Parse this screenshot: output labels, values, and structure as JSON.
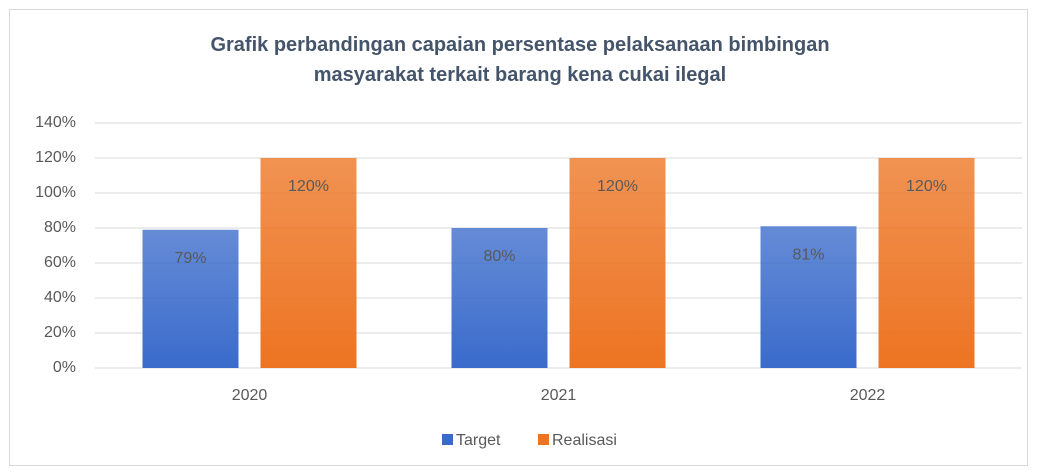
{
  "chart_data": {
    "type": "bar",
    "title": "Grafik perbandingan capaian persentase pelaksanaan bimbingan masyarakat terkait barang kena cukai ilegal",
    "categories": [
      "2020",
      "2021",
      "2022"
    ],
    "series": [
      {
        "name": "Target",
        "color": "#3a6bcb",
        "values": [
          79,
          80,
          81
        ],
        "value_labels": [
          "79%",
          "80%",
          "81%"
        ]
      },
      {
        "name": "Realisasi",
        "color": "#ed7422",
        "values": [
          120,
          120,
          120
        ],
        "value_labels": [
          "120%",
          "120%",
          "120%"
        ]
      }
    ],
    "ylim": [
      0,
      140
    ],
    "yticks": [
      {
        "value": 0,
        "label": "0%"
      },
      {
        "value": 20,
        "label": "20%"
      },
      {
        "value": 40,
        "label": "40%"
      },
      {
        "value": 60,
        "label": "60%"
      },
      {
        "value": 80,
        "label": "80%"
      },
      {
        "value": 100,
        "label": "100%"
      },
      {
        "value": 120,
        "label": "120%"
      },
      {
        "value": 140,
        "label": "140%"
      }
    ],
    "grid": true,
    "legend": "bottom"
  }
}
